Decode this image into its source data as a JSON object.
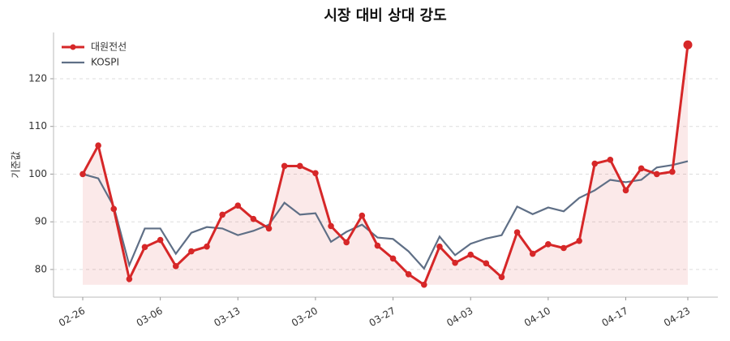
{
  "chart_data": {
    "type": "line",
    "title": "시장 대비 상대 강도",
    "y_label": "기준값",
    "categories": [
      "02-26",
      null,
      null,
      null,
      null,
      "03-06",
      null,
      null,
      null,
      null,
      "03-13",
      null,
      null,
      null,
      null,
      "03-20",
      null,
      null,
      null,
      null,
      "03-27",
      null,
      null,
      null,
      null,
      "04-03",
      null,
      null,
      null,
      null,
      "04-10",
      null,
      null,
      null,
      null,
      "04-17",
      null,
      null,
      null,
      "04-23"
    ],
    "series": [
      {
        "name": "대원전선",
        "color": "#d62728",
        "fill": true,
        "markers": true,
        "values": [
          100,
          106,
          92.7,
          78,
          84.7,
          86.2,
          80.7,
          83.8,
          84.8,
          91.5,
          93.4,
          90.6,
          88.6,
          101.7,
          101.7,
          100.2,
          89.1,
          85.7,
          91.3,
          85,
          82.3,
          79,
          76.8,
          84.8,
          81.4,
          83.1,
          81.3,
          78.4,
          87.8,
          83.3,
          85.3,
          84.5,
          86,
          102.2,
          103,
          96.6,
          101.2,
          100,
          100.5,
          127.1
        ]
      },
      {
        "name": "KOSPI",
        "color": "#5f6f86",
        "fill": false,
        "markers": false,
        "values": [
          100,
          99.1,
          93.2,
          80.9,
          88.6,
          88.6,
          83.3,
          87.7,
          88.9,
          88.6,
          87.2,
          88.1,
          89.4,
          94,
          91.5,
          91.8,
          85.8,
          87.9,
          89.4,
          86.7,
          86.4,
          83.8,
          80.2,
          86.9,
          83,
          85.4,
          86.5,
          87.2,
          93.2,
          91.6,
          93,
          92.2,
          95,
          96.6,
          98.8,
          98.3,
          98.8,
          101.4,
          101.9,
          102.7
        ]
      }
    ],
    "ylim": [
      74.2,
      129.7
    ],
    "yticks": [
      80,
      90,
      100,
      110,
      120
    ],
    "grid": true,
    "legend": "upper-left"
  }
}
